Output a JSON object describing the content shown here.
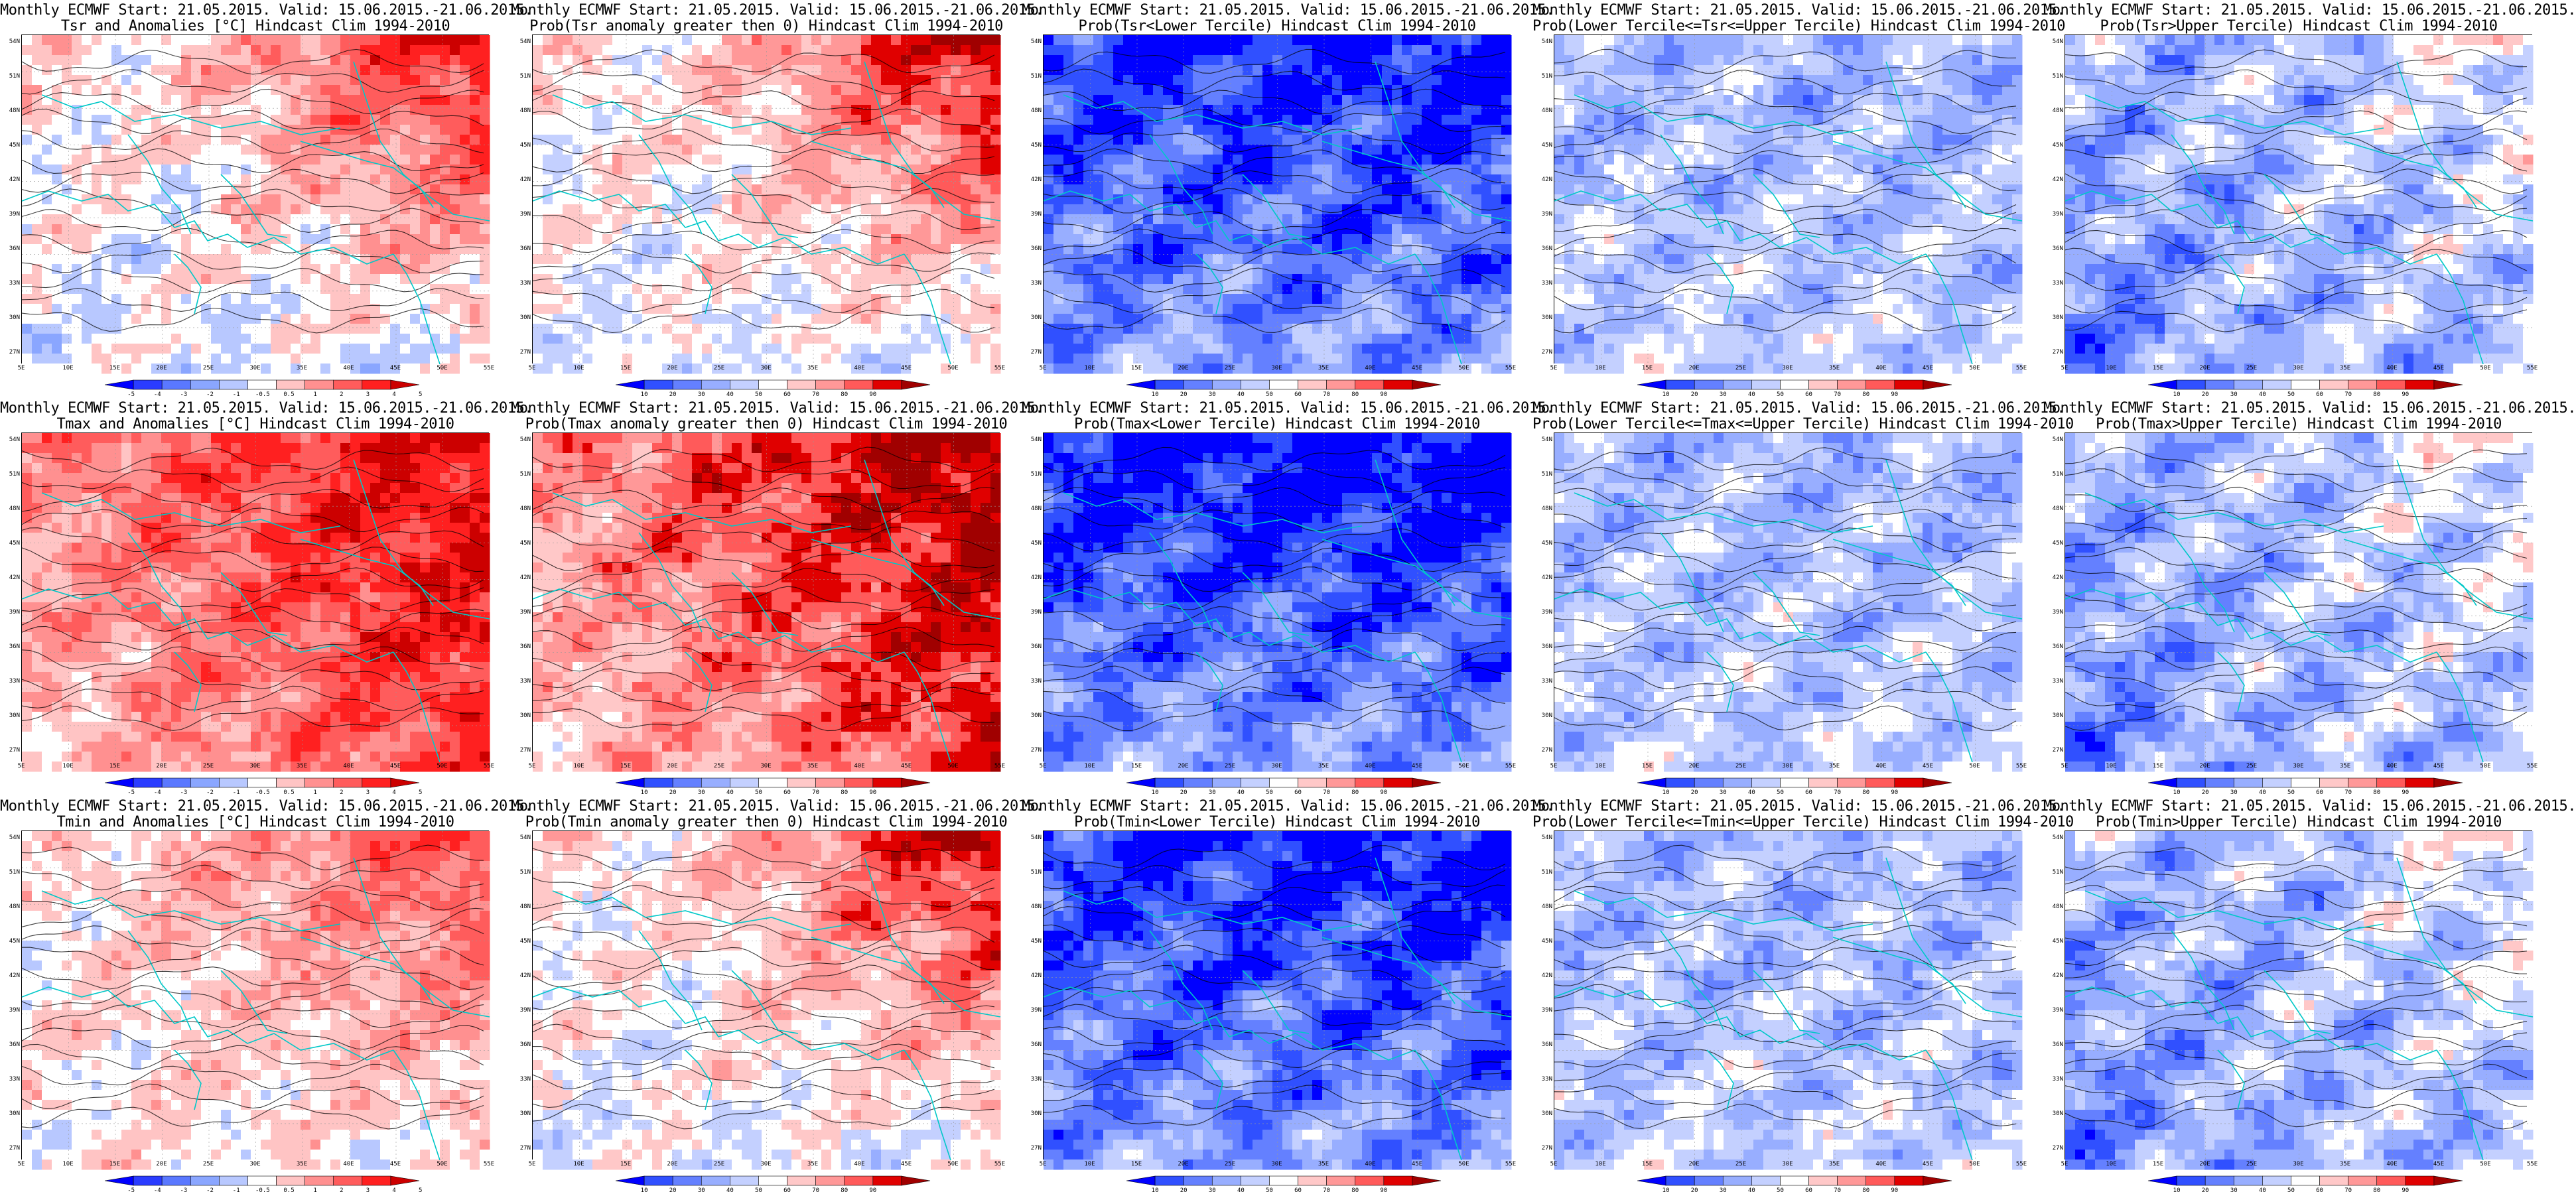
{
  "palette": {
    "diverging": [
      "#0000ff",
      "#2a3cff",
      "#5a78ff",
      "#8aa6ff",
      "#b8c8ff",
      "#ffffff",
      "#ffc4c4",
      "#ff9090",
      "#ff5c5c",
      "#ff2020",
      "#cc0000"
    ],
    "prob": [
      "#0000ff",
      "#3050ff",
      "#6480ff",
      "#98aeff",
      "#c4d0ff",
      "#ffffff",
      "#ffc8c8",
      "#ff9898",
      "#ff5a5a",
      "#e00000",
      "#a00000"
    ],
    "coast": "#00c8c8",
    "contour": "#000000"
  },
  "axes": {
    "lat_labels": [
      "54N",
      "51N",
      "48N",
      "45N",
      "42N",
      "39N",
      "36N",
      "33N",
      "30N",
      "27N"
    ],
    "lon_labels": [
      "5E",
      "10E",
      "15E",
      "20E",
      "25E",
      "30E",
      "35E",
      "40E",
      "45E",
      "50E",
      "55E"
    ]
  },
  "colorbars": {
    "anomaly": [
      "-5",
      "-4",
      "-3",
      "-2",
      "-1",
      "-0.5",
      "0.5",
      "1",
      "2",
      "3",
      "4",
      "5"
    ],
    "probability": [
      "10",
      "20",
      "30",
      "40",
      "50",
      "60",
      "70",
      "80",
      "90"
    ]
  },
  "panels": [
    {
      "line1": "Monthly ECMWF Start: 21.05.2015. Valid: 15.06.2015.-21.06.2015.",
      "line2": "Tsr and Anomalies [°C] Hindcast Clim 1994-2010",
      "kind": "anomaly",
      "field": "warm-northeast",
      "cbar": "anomaly"
    },
    {
      "line1": "Monthly ECMWF Start: 21.05.2015. Valid: 15.06.2015.-21.06.2015.",
      "line2": "Prob(Tsr anomaly greater then 0) Hindcast Clim 1994-2010",
      "kind": "prob",
      "field": "warm-northeast",
      "cbar": "probability"
    },
    {
      "line1": "Monthly ECMWF Start: 21.05.2015. Valid: 15.06.2015.-21.06.2015.",
      "line2": "Prob(Tsr<Lower Tercile) Hindcast Clim 1994-2010",
      "kind": "prob",
      "field": "cold-lower",
      "cbar": "probability"
    },
    {
      "line1": "Monthly ECMWF Start: 21.05.2015. Valid: 15.06.2015.-21.06.2015.",
      "line2": "Prob(Lower Tercile<=Tsr<=Upper Tercile) Hindcast Clim 1994-2010",
      "kind": "prob",
      "field": "mixed-middle",
      "cbar": "probability"
    },
    {
      "line1": "Monthly ECMWF Start: 21.05.2015. Valid: 15.06.2015.-21.06.2015.",
      "line2": "Prob(Tsr>Upper Tercile) Hindcast Clim 1994-2010",
      "kind": "prob",
      "field": "upper",
      "cbar": "probability"
    },
    {
      "line1": "Monthly ECMWF Start: 21.05.2015. Valid: 15.06.2015.-21.06.2015.",
      "line2": "Tmax and Anomalies [°C] Hindcast Clim 1994-2010",
      "kind": "anomaly",
      "field": "warm-strong",
      "cbar": "anomaly"
    },
    {
      "line1": "Monthly ECMWF Start: 21.05.2015. Valid: 15.06.2015.-21.06.2015.",
      "line2": "Prob(Tmax anomaly greater then 0) Hindcast Clim 1994-2010",
      "kind": "prob",
      "field": "warm-strong",
      "cbar": "probability"
    },
    {
      "line1": "Monthly ECMWF Start: 21.05.2015. Valid: 15.06.2015.-21.06.2015.",
      "line2": "Prob(Tmax<Lower Tercile) Hindcast Clim 1994-2010",
      "kind": "prob",
      "field": "cold-lower-strong",
      "cbar": "probability"
    },
    {
      "line1": "Monthly ECMWF Start: 21.05.2015. Valid: 15.06.2015.-21.06.2015.",
      "line2": "Prob(Lower Tercile<=Tmax<=Upper Tercile) Hindcast Clim 1994-2010",
      "kind": "prob",
      "field": "mixed-middle",
      "cbar": "probability"
    },
    {
      "line1": "Monthly ECMWF Start: 21.05.2015. Valid: 15.06.2015.-21.06.2015.",
      "line2": "Prob(Tmax>Upper Tercile) Hindcast Clim 1994-2010",
      "kind": "prob",
      "field": "upper",
      "cbar": "probability"
    },
    {
      "line1": "Monthly ECMWF Start: 21.05.2015. Valid: 15.06.2015.-21.06.2015.",
      "line2": "Tmin and Anomalies [°C] Hindcast Clim 1994-2010",
      "kind": "anomaly",
      "field": "warm-light",
      "cbar": "anomaly"
    },
    {
      "line1": "Monthly ECMWF Start: 21.05.2015. Valid: 15.06.2015.-21.06.2015.",
      "line2": "Prob(Tmin anomaly greater then 0) Hindcast Clim 1994-2010",
      "kind": "prob",
      "field": "warm-northeast",
      "cbar": "probability"
    },
    {
      "line1": "Monthly ECMWF Start: 21.05.2015. Valid: 15.06.2015.-21.06.2015.",
      "line2": "Prob(Tmin<Lower Tercile) Hindcast Clim 1994-2010",
      "kind": "prob",
      "field": "cold-lower",
      "cbar": "probability"
    },
    {
      "line1": "Monthly ECMWF Start: 21.05.2015. Valid: 15.06.2015.-21.06.2015.",
      "line2": "Prob(Lower Tercile<=Tmin<=Upper Tercile) Hindcast Clim 1994-2010",
      "kind": "prob",
      "field": "mixed-middle",
      "cbar": "probability"
    },
    {
      "line1": "Monthly ECMWF Start: 21.05.2015. Valid: 15.06.2015.-21.06.2015.",
      "line2": "Prob(Tmin>Upper Tercile) Hindcast Clim 1994-2010",
      "kind": "prob",
      "field": "upper",
      "cbar": "probability"
    }
  ]
}
